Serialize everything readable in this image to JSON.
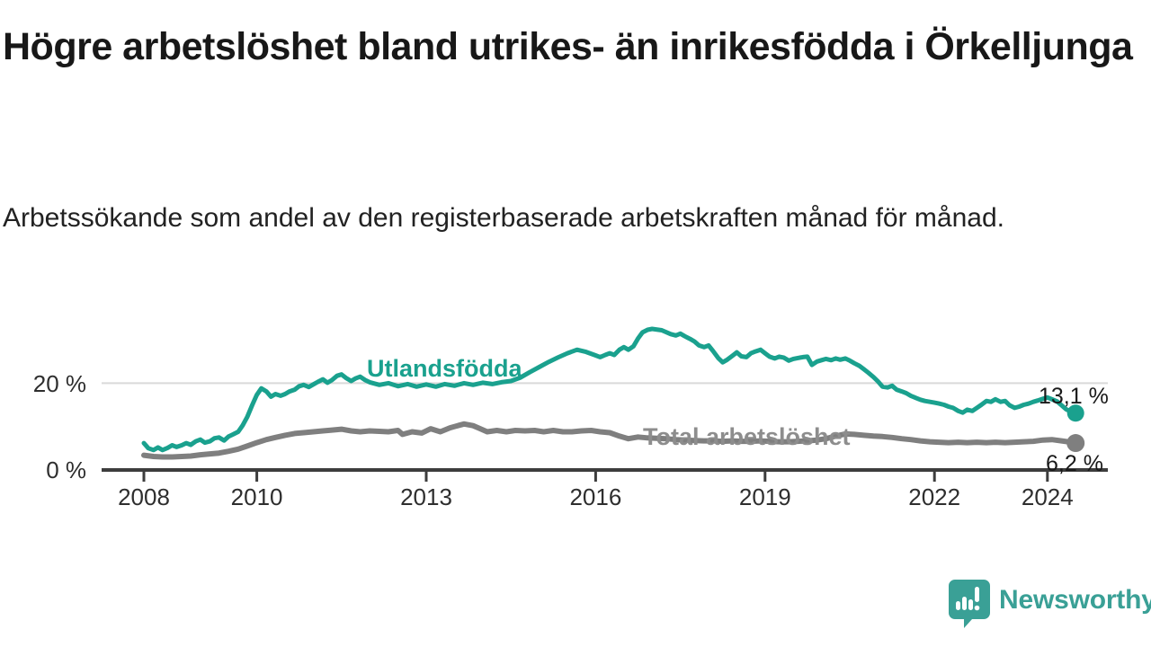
{
  "title": "Högre arbetslöshet bland utrikes- än inrikesfödda i Örkelljunga",
  "subtitle": "Arbetssökande som andel av den registerbaserade arbetskraften månad för månad.",
  "branding": {
    "logo_text": "Newsworthy",
    "logo_icon": "newsworthy-bubble-bar-chart-icon"
  },
  "colors": {
    "foreign_born_line": "#1aa18e",
    "total_line": "#7f7f7f",
    "total_label": "#8d8d8d",
    "axis": "#3d3d3d",
    "grid": "#d9d9d9",
    "logo_teal": "#3aa096",
    "text": "#181818"
  },
  "chart_data": {
    "type": "line",
    "unit": "%",
    "x_axis": {
      "ticks": [
        2008,
        2010,
        2013,
        2016,
        2019,
        2022,
        2024
      ],
      "tick_labels": [
        "2008",
        "2010",
        "2013",
        "2016",
        "2019",
        "2022",
        "2024"
      ],
      "range": [
        2007.25,
        2025.05
      ]
    },
    "y_axis": {
      "ticks": [
        0,
        20
      ],
      "tick_labels": [
        "0 %",
        "20 %"
      ],
      "range": [
        0,
        37
      ],
      "grid_at": [
        20
      ]
    },
    "legend_position": "inline-labels",
    "series": [
      {
        "name": "Utlandsfödda",
        "color": "#1aa18e",
        "label_color": "#1aa18e",
        "end_label": "13,1 %",
        "end_value": 13.1,
        "points": [
          [
            2008.0,
            6.2
          ],
          [
            2008.08,
            5.0
          ],
          [
            2008.17,
            4.6
          ],
          [
            2008.25,
            5.2
          ],
          [
            2008.33,
            4.6
          ],
          [
            2008.42,
            5.1
          ],
          [
            2008.5,
            5.7
          ],
          [
            2008.58,
            5.3
          ],
          [
            2008.67,
            5.7
          ],
          [
            2008.75,
            6.2
          ],
          [
            2008.83,
            5.8
          ],
          [
            2008.92,
            6.6
          ],
          [
            2009.0,
            7.0
          ],
          [
            2009.08,
            6.3
          ],
          [
            2009.17,
            6.6
          ],
          [
            2009.25,
            7.3
          ],
          [
            2009.33,
            7.5
          ],
          [
            2009.42,
            6.8
          ],
          [
            2009.5,
            7.7
          ],
          [
            2009.58,
            8.2
          ],
          [
            2009.67,
            8.8
          ],
          [
            2009.75,
            10.3
          ],
          [
            2009.83,
            12.2
          ],
          [
            2009.92,
            15.0
          ],
          [
            2010.0,
            17.3
          ],
          [
            2010.08,
            18.8
          ],
          [
            2010.17,
            18.1
          ],
          [
            2010.25,
            16.9
          ],
          [
            2010.33,
            17.5
          ],
          [
            2010.42,
            17.1
          ],
          [
            2010.5,
            17.5
          ],
          [
            2010.58,
            18.1
          ],
          [
            2010.67,
            18.5
          ],
          [
            2010.75,
            19.3
          ],
          [
            2010.83,
            19.6
          ],
          [
            2010.92,
            19.1
          ],
          [
            2011.0,
            19.7
          ],
          [
            2011.08,
            20.3
          ],
          [
            2011.17,
            20.9
          ],
          [
            2011.25,
            20.1
          ],
          [
            2011.33,
            20.7
          ],
          [
            2011.42,
            21.7
          ],
          [
            2011.5,
            22.0
          ],
          [
            2011.58,
            21.2
          ],
          [
            2011.67,
            20.5
          ],
          [
            2011.75,
            21.1
          ],
          [
            2011.83,
            21.5
          ],
          [
            2011.92,
            20.7
          ],
          [
            2012.0,
            20.2
          ],
          [
            2012.17,
            19.6
          ],
          [
            2012.33,
            20.0
          ],
          [
            2012.5,
            19.3
          ],
          [
            2012.67,
            19.8
          ],
          [
            2012.83,
            19.2
          ],
          [
            2013.0,
            19.7
          ],
          [
            2013.17,
            19.2
          ],
          [
            2013.33,
            19.8
          ],
          [
            2013.5,
            19.4
          ],
          [
            2013.67,
            20.0
          ],
          [
            2013.83,
            19.6
          ],
          [
            2014.0,
            20.1
          ],
          [
            2014.17,
            19.8
          ],
          [
            2014.33,
            20.2
          ],
          [
            2014.5,
            20.5
          ],
          [
            2014.67,
            21.3
          ],
          [
            2014.83,
            22.5
          ],
          [
            2015.0,
            23.7
          ],
          [
            2015.17,
            24.9
          ],
          [
            2015.33,
            25.9
          ],
          [
            2015.5,
            26.9
          ],
          [
            2015.67,
            27.7
          ],
          [
            2015.83,
            27.2
          ],
          [
            2016.0,
            26.4
          ],
          [
            2016.08,
            26.0
          ],
          [
            2016.17,
            26.5
          ],
          [
            2016.25,
            26.9
          ],
          [
            2016.33,
            26.5
          ],
          [
            2016.42,
            27.7
          ],
          [
            2016.5,
            28.3
          ],
          [
            2016.58,
            27.7
          ],
          [
            2016.67,
            28.5
          ],
          [
            2016.75,
            30.3
          ],
          [
            2016.83,
            31.7
          ],
          [
            2016.92,
            32.3
          ],
          [
            2017.0,
            32.5
          ],
          [
            2017.17,
            32.2
          ],
          [
            2017.33,
            31.3
          ],
          [
            2017.42,
            31.0
          ],
          [
            2017.5,
            31.4
          ],
          [
            2017.58,
            30.8
          ],
          [
            2017.67,
            30.2
          ],
          [
            2017.75,
            29.6
          ],
          [
            2017.83,
            28.7
          ],
          [
            2017.92,
            28.3
          ],
          [
            2018.0,
            28.7
          ],
          [
            2018.08,
            27.4
          ],
          [
            2018.17,
            25.8
          ],
          [
            2018.25,
            24.8
          ],
          [
            2018.33,
            25.4
          ],
          [
            2018.42,
            26.3
          ],
          [
            2018.5,
            27.1
          ],
          [
            2018.58,
            26.2
          ],
          [
            2018.67,
            26.0
          ],
          [
            2018.75,
            26.9
          ],
          [
            2018.83,
            27.3
          ],
          [
            2018.92,
            27.7
          ],
          [
            2019.0,
            26.9
          ],
          [
            2019.08,
            26.1
          ],
          [
            2019.17,
            25.7
          ],
          [
            2019.25,
            26.1
          ],
          [
            2019.33,
            25.9
          ],
          [
            2019.42,
            25.2
          ],
          [
            2019.5,
            25.6
          ],
          [
            2019.58,
            25.8
          ],
          [
            2019.67,
            26.0
          ],
          [
            2019.75,
            26.1
          ],
          [
            2019.83,
            24.2
          ],
          [
            2019.92,
            25.0
          ],
          [
            2020.0,
            25.3
          ],
          [
            2020.08,
            25.6
          ],
          [
            2020.17,
            25.3
          ],
          [
            2020.25,
            25.7
          ],
          [
            2020.33,
            25.4
          ],
          [
            2020.42,
            25.7
          ],
          [
            2020.5,
            25.2
          ],
          [
            2020.58,
            24.6
          ],
          [
            2020.67,
            24.0
          ],
          [
            2020.75,
            23.2
          ],
          [
            2020.83,
            22.4
          ],
          [
            2020.92,
            21.4
          ],
          [
            2021.0,
            20.4
          ],
          [
            2021.08,
            19.2
          ],
          [
            2021.17,
            19.0
          ],
          [
            2021.25,
            19.4
          ],
          [
            2021.33,
            18.5
          ],
          [
            2021.42,
            18.1
          ],
          [
            2021.5,
            17.7
          ],
          [
            2021.58,
            17.1
          ],
          [
            2021.67,
            16.6
          ],
          [
            2021.75,
            16.2
          ],
          [
            2021.83,
            15.9
          ],
          [
            2021.92,
            15.7
          ],
          [
            2022.0,
            15.5
          ],
          [
            2022.08,
            15.3
          ],
          [
            2022.17,
            15.0
          ],
          [
            2022.25,
            14.6
          ],
          [
            2022.33,
            14.3
          ],
          [
            2022.42,
            13.6
          ],
          [
            2022.5,
            13.2
          ],
          [
            2022.58,
            13.9
          ],
          [
            2022.67,
            13.6
          ],
          [
            2022.75,
            14.3
          ],
          [
            2022.83,
            15.0
          ],
          [
            2022.92,
            15.9
          ],
          [
            2023.0,
            15.7
          ],
          [
            2023.08,
            16.3
          ],
          [
            2023.17,
            15.7
          ],
          [
            2023.25,
            15.9
          ],
          [
            2023.33,
            14.9
          ],
          [
            2023.42,
            14.3
          ],
          [
            2023.5,
            14.6
          ],
          [
            2023.58,
            15.0
          ],
          [
            2023.67,
            15.3
          ],
          [
            2023.75,
            15.7
          ],
          [
            2023.83,
            16.0
          ],
          [
            2023.92,
            16.4
          ],
          [
            2024.0,
            16.7
          ],
          [
            2024.08,
            16.3
          ],
          [
            2024.17,
            15.8
          ],
          [
            2024.25,
            14.9
          ],
          [
            2024.33,
            14.0
          ],
          [
            2024.42,
            13.4
          ],
          [
            2024.5,
            13.1
          ]
        ]
      },
      {
        "name": "Total arbetslöshet",
        "color": "#7f7f7f",
        "label_color": "#8d8d8d",
        "end_label": "6,2 %",
        "end_value": 6.2,
        "points": [
          [
            2008.0,
            3.4
          ],
          [
            2008.17,
            3.1
          ],
          [
            2008.33,
            3.0
          ],
          [
            2008.5,
            3.0
          ],
          [
            2008.67,
            3.1
          ],
          [
            2008.83,
            3.2
          ],
          [
            2009.0,
            3.5
          ],
          [
            2009.17,
            3.7
          ],
          [
            2009.33,
            3.9
          ],
          [
            2009.5,
            4.3
          ],
          [
            2009.67,
            4.8
          ],
          [
            2009.83,
            5.5
          ],
          [
            2010.0,
            6.3
          ],
          [
            2010.17,
            7.0
          ],
          [
            2010.33,
            7.5
          ],
          [
            2010.5,
            8.0
          ],
          [
            2010.67,
            8.4
          ],
          [
            2010.83,
            8.6
          ],
          [
            2011.0,
            8.8
          ],
          [
            2011.17,
            9.0
          ],
          [
            2011.33,
            9.2
          ],
          [
            2011.5,
            9.4
          ],
          [
            2011.67,
            9.0
          ],
          [
            2011.83,
            8.8
          ],
          [
            2012.0,
            9.0
          ],
          [
            2012.17,
            8.9
          ],
          [
            2012.33,
            8.8
          ],
          [
            2012.5,
            9.1
          ],
          [
            2012.58,
            8.2
          ],
          [
            2012.75,
            8.8
          ],
          [
            2012.92,
            8.5
          ],
          [
            2013.08,
            9.5
          ],
          [
            2013.25,
            8.8
          ],
          [
            2013.42,
            9.7
          ],
          [
            2013.58,
            10.3
          ],
          [
            2013.67,
            10.6
          ],
          [
            2013.83,
            10.2
          ],
          [
            2013.92,
            9.7
          ],
          [
            2014.08,
            8.8
          ],
          [
            2014.25,
            9.1
          ],
          [
            2014.42,
            8.8
          ],
          [
            2014.58,
            9.1
          ],
          [
            2014.75,
            9.0
          ],
          [
            2014.92,
            9.1
          ],
          [
            2015.08,
            8.8
          ],
          [
            2015.25,
            9.1
          ],
          [
            2015.42,
            8.8
          ],
          [
            2015.58,
            8.8
          ],
          [
            2015.75,
            9.0
          ],
          [
            2015.92,
            9.1
          ],
          [
            2016.08,
            8.8
          ],
          [
            2016.25,
            8.6
          ],
          [
            2016.42,
            7.8
          ],
          [
            2016.58,
            7.2
          ],
          [
            2016.75,
            7.6
          ],
          [
            2016.92,
            7.4
          ],
          [
            2017.08,
            7.3
          ],
          [
            2017.25,
            7.2
          ],
          [
            2017.42,
            7.0
          ],
          [
            2017.58,
            6.9
          ],
          [
            2017.75,
            6.8
          ],
          [
            2017.92,
            6.7
          ],
          [
            2018.08,
            6.7
          ],
          [
            2018.25,
            6.6
          ],
          [
            2018.42,
            6.7
          ],
          [
            2018.58,
            6.6
          ],
          [
            2018.75,
            6.6
          ],
          [
            2018.92,
            6.7
          ],
          [
            2019.08,
            6.6
          ],
          [
            2019.25,
            6.5
          ],
          [
            2019.42,
            6.5
          ],
          [
            2019.58,
            6.6
          ],
          [
            2019.75,
            6.7
          ],
          [
            2019.92,
            6.9
          ],
          [
            2020.08,
            7.2
          ],
          [
            2020.25,
            7.8
          ],
          [
            2020.42,
            8.3
          ],
          [
            2020.58,
            8.2
          ],
          [
            2020.75,
            8.0
          ],
          [
            2020.92,
            7.8
          ],
          [
            2021.08,
            7.7
          ],
          [
            2021.25,
            7.5
          ],
          [
            2021.42,
            7.2
          ],
          [
            2021.58,
            7.0
          ],
          [
            2021.75,
            6.7
          ],
          [
            2021.92,
            6.5
          ],
          [
            2022.08,
            6.4
          ],
          [
            2022.25,
            6.3
          ],
          [
            2022.42,
            6.4
          ],
          [
            2022.58,
            6.3
          ],
          [
            2022.75,
            6.4
          ],
          [
            2022.92,
            6.3
          ],
          [
            2023.08,
            6.4
          ],
          [
            2023.25,
            6.3
          ],
          [
            2023.42,
            6.4
          ],
          [
            2023.58,
            6.5
          ],
          [
            2023.75,
            6.6
          ],
          [
            2023.92,
            6.9
          ],
          [
            2024.08,
            7.0
          ],
          [
            2024.25,
            6.7
          ],
          [
            2024.42,
            6.4
          ],
          [
            2024.5,
            6.2
          ]
        ]
      }
    ]
  }
}
